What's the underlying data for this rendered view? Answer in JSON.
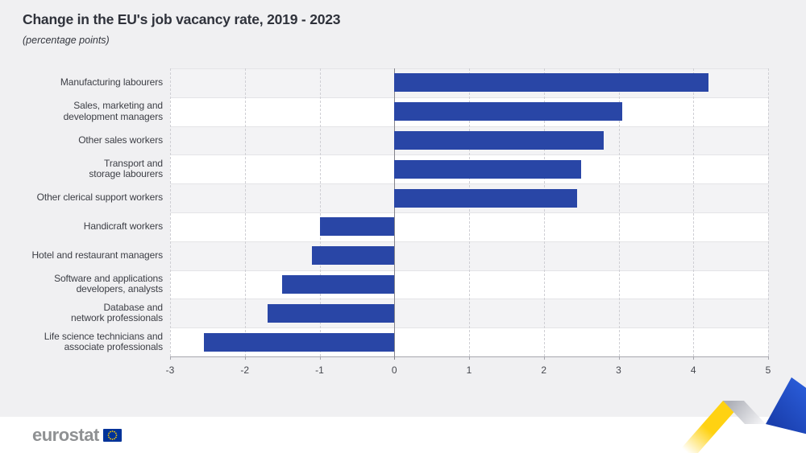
{
  "header": {
    "title": "Change in the EU's job vacancy rate, 2019 - 2023",
    "subtitle": "(percentage points)"
  },
  "footer": {
    "logo_text": "eurostat",
    "eu_flag_icon": "eu-flag-icon"
  },
  "colors": {
    "bar": "#2946a6",
    "page_background": "#f0f0f2",
    "band_gray": "#f3f3f5",
    "band_white": "#ffffff",
    "zero_line": "#84848c",
    "gridline_dashed": "#cfcfd4",
    "axis_line": "#a6a6ad",
    "title_text": "#2f323b",
    "eu_flag_blue": "#003399",
    "star_yellow": "#ffcc00",
    "ribbon_yellow": "#ffd212",
    "ribbon_blue": "#2050cb"
  },
  "chart_data": {
    "type": "bar",
    "orientation": "horizontal",
    "title": "Change in the EU's job vacancy rate, 2019 - 2023",
    "subtitle": "(percentage points)",
    "xlabel": "",
    "ylabel": "",
    "categories": [
      "Manufacturing labourers",
      "Sales, marketing and\ndevelopment managers",
      "Other sales workers",
      "Transport and\nstorage labourers",
      "Other clerical support workers",
      "Handicraft workers",
      "Hotel and restaurant managers",
      "Software and applications\ndevelopers, analysts",
      "Database and\nnetwork professionals",
      "Life science technicians and\nassociate professionals"
    ],
    "values": [
      4.2,
      3.05,
      2.8,
      2.5,
      2.45,
      -1.0,
      -1.1,
      -1.5,
      -1.7,
      -2.55
    ],
    "xlim": [
      -3,
      5
    ],
    "xticks": [
      -3,
      -2,
      -1,
      0,
      1,
      2,
      3,
      4,
      5
    ],
    "grid": "vertical-dashed",
    "legend": "none"
  }
}
